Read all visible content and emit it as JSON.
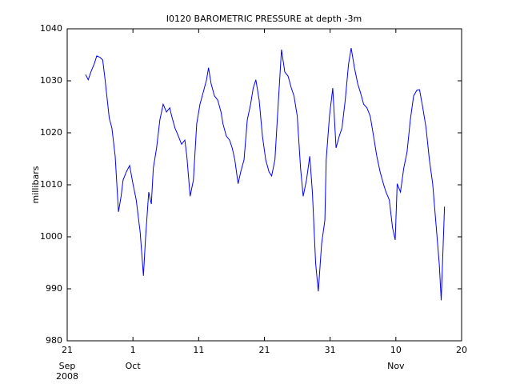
{
  "chart_data": {
    "type": "line",
    "title": "I0120 BAROMETRIC PRESSURE at depth -3m",
    "y_label": "millibars",
    "year_label": "2008",
    "color": "#0000ff",
    "x": [
      2.8,
      3.2,
      3.6,
      4.1,
      4.5,
      5.0,
      5.4,
      5.7,
      6.1,
      6.4,
      6.8,
      7.3,
      7.8,
      8.2,
      8.5,
      9.0,
      9.5,
      10.0,
      10.5,
      11.1,
      11.6,
      11.9,
      12.4,
      12.8,
      13.1,
      13.6,
      14.1,
      14.6,
      15.1,
      15.6,
      15.9,
      16.4,
      16.9,
      17.4,
      17.9,
      18.2,
      18.7,
      19.2,
      19.7,
      20.2,
      20.7,
      21.2,
      21.5,
      21.9,
      22.4,
      22.9,
      23.4,
      23.7,
      24.2,
      24.7,
      25.1,
      25.5,
      26.0,
      26.4,
      26.9,
      27.4,
      27.9,
      28.3,
      28.7,
      29.2,
      29.7,
      30.2,
      30.7,
      31.1,
      31.6,
      32.1,
      32.6,
      33.1,
      33.6,
      34.1,
      34.5,
      35.0,
      35.5,
      35.9,
      36.4,
      36.9,
      37.3,
      37.8,
      38.2,
      38.7,
      39.2,
      39.4,
      39.9,
      40.4,
      40.9,
      41.4,
      41.8,
      42.3,
      42.8,
      43.2,
      43.7,
      44.2,
      44.6,
      45.1,
      45.6,
      46.1,
      46.6,
      47.1,
      47.6,
      48.1,
      48.5,
      49.0,
      49.5,
      49.9,
      50.2,
      50.7,
      51.2,
      51.7,
      52.2,
      52.7,
      53.2,
      53.6,
      54.1,
      54.6,
      55.1,
      55.6,
      56.1,
      56.6,
      56.9,
      57.4
    ],
    "values": [
      1031.2,
      1030.2,
      1031.7,
      1033.2,
      1034.8,
      1034.5,
      1034.0,
      1030.9,
      1026.3,
      1022.8,
      1020.9,
      1015.5,
      1004.8,
      1007.8,
      1010.9,
      1012.5,
      1013.7,
      1010.2,
      1007.1,
      1000.9,
      992.5,
      999.4,
      1008.6,
      1006.3,
      1013.2,
      1017.1,
      1022.5,
      1025.5,
      1024.0,
      1024.8,
      1023.2,
      1020.9,
      1019.4,
      1017.8,
      1018.6,
      1015.5,
      1007.8,
      1010.9,
      1021.7,
      1025.5,
      1027.8,
      1030.2,
      1032.5,
      1029.4,
      1027.1,
      1026.3,
      1024.0,
      1021.7,
      1019.4,
      1018.6,
      1017.1,
      1014.8,
      1010.2,
      1012.5,
      1014.8,
      1022.5,
      1025.5,
      1028.6,
      1030.2,
      1026.3,
      1019.4,
      1014.8,
      1012.5,
      1011.7,
      1014.8,
      1025.5,
      1036.0,
      1031.7,
      1030.9,
      1028.6,
      1027.1,
      1023.2,
      1013.2,
      1007.8,
      1010.9,
      1015.5,
      1008.6,
      994.8,
      989.5,
      998.6,
      1003.2,
      1014.8,
      1023.2,
      1028.6,
      1017.1,
      1019.4,
      1020.9,
      1026.3,
      1033.2,
      1036.3,
      1032.5,
      1029.4,
      1027.8,
      1025.5,
      1024.8,
      1023.2,
      1019.4,
      1015.5,
      1012.5,
      1010.2,
      1008.6,
      1007.1,
      1001.7,
      999.4,
      1010.2,
      1008.6,
      1013.2,
      1016.3,
      1022.5,
      1027.1,
      1028.2,
      1028.3,
      1024.8,
      1020.9,
      1014.8,
      1010.2,
      1002.5,
      994.8,
      987.8,
      1005.8
    ],
    "xlim": [
      0,
      60
    ],
    "xticks": [
      {
        "value": 0,
        "label": "21"
      },
      {
        "value": 10,
        "label": "1"
      },
      {
        "value": 20,
        "label": "11"
      },
      {
        "value": 30,
        "label": "21"
      },
      {
        "value": 40,
        "label": "31"
      },
      {
        "value": 50,
        "label": "10"
      },
      {
        "value": 60,
        "label": "20"
      }
    ],
    "month_labels": [
      {
        "value": 0,
        "label": "Sep"
      },
      {
        "value": 10,
        "label": "Oct"
      },
      {
        "value": 50,
        "label": "Nov"
      }
    ],
    "ylim": [
      980,
      1040
    ],
    "yticks": [
      980,
      990,
      1000,
      1010,
      1020,
      1030,
      1040
    ],
    "grid": false
  }
}
